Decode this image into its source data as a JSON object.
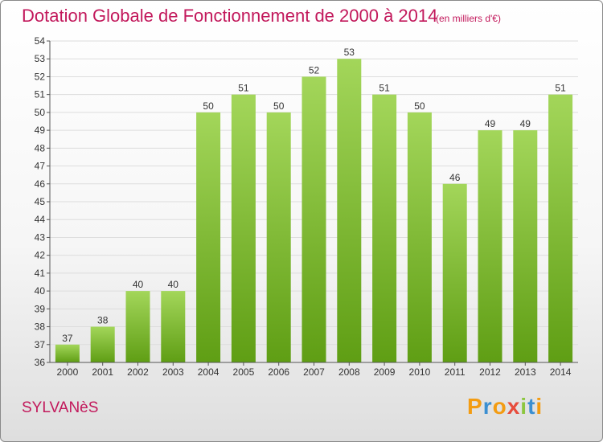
{
  "header": {
    "title": "Dotation Globale de Fonctionnement de 2000 à 2014",
    "subtitle": "(en milliers d'€)"
  },
  "footer": {
    "commune": "SYLVANèS",
    "logo_text": "Proxiti",
    "logo_colors": [
      "#f39c12",
      "#3b8fd1",
      "#f39c12",
      "#e74c3c",
      "#8cc63f",
      "#3b8fd1",
      "#f39c12"
    ]
  },
  "colors": {
    "bar_top": "#a3d65a",
    "bar_bottom": "#5f9e14",
    "grid": "#dddddd",
    "accent": "#c2185b"
  },
  "chart_data": {
    "type": "bar",
    "categories": [
      "2000",
      "2001",
      "2002",
      "2003",
      "2004",
      "2005",
      "2006",
      "2007",
      "2008",
      "2009",
      "2010",
      "2011",
      "2012",
      "2013",
      "2014"
    ],
    "values": [
      37,
      38,
      40,
      40,
      50,
      51,
      50,
      52,
      53,
      51,
      50,
      46,
      49,
      49,
      51
    ],
    "ylim": [
      36,
      54
    ],
    "yticks": [
      36,
      37,
      38,
      39,
      40,
      41,
      42,
      43,
      44,
      45,
      46,
      47,
      48,
      49,
      50,
      51,
      52,
      53,
      54
    ],
    "grid": true,
    "xlabel": "",
    "ylabel": ""
  }
}
